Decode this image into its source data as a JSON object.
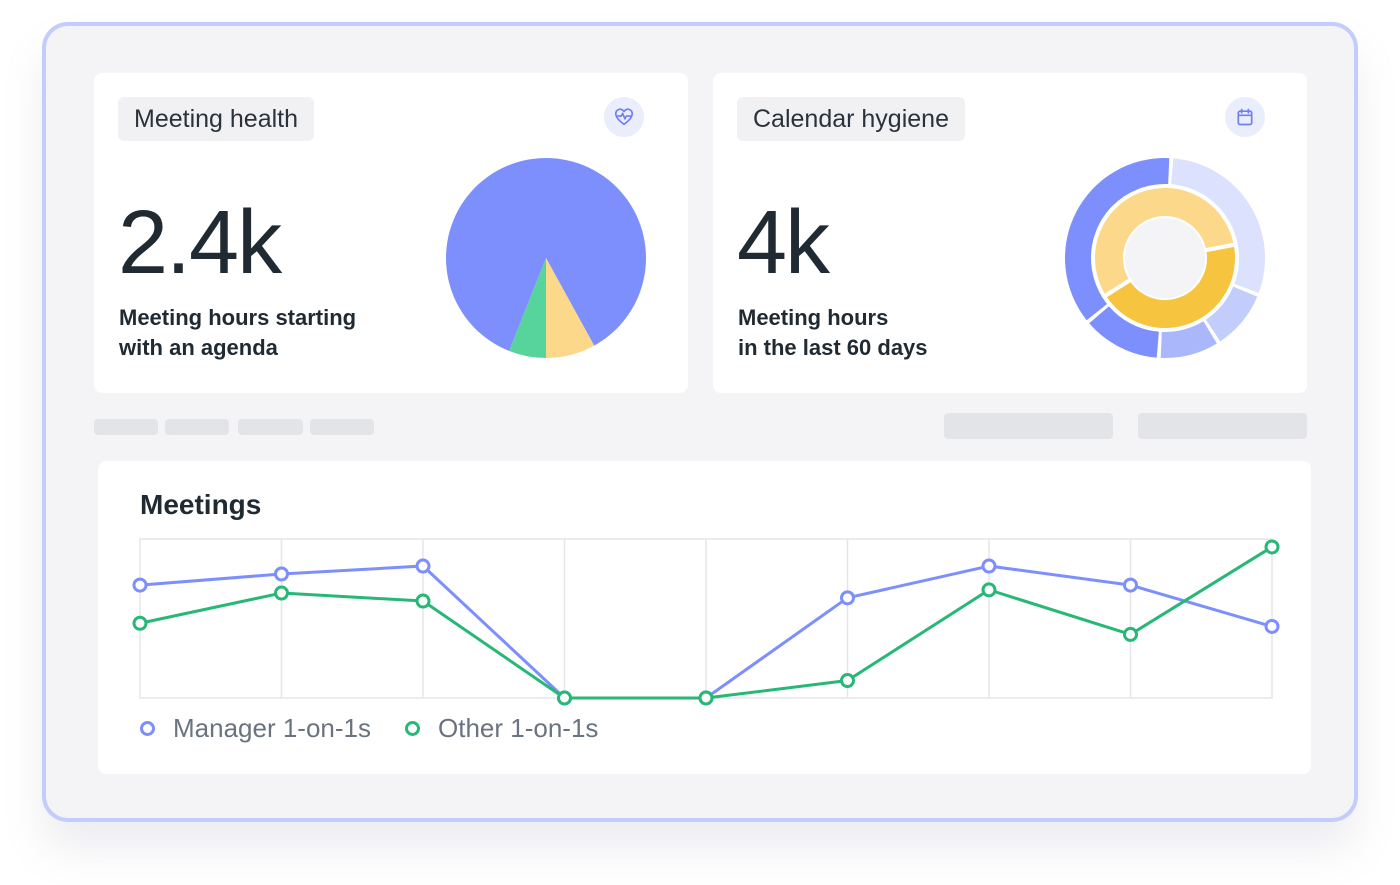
{
  "cards": {
    "meeting_health": {
      "title": "Meeting health",
      "icon": "heart-pulse-icon",
      "value": "2.4k",
      "caption_line1": "Meeting hours starting",
      "caption_line2": "with an agenda",
      "pie": {
        "type": "pie",
        "slices": [
          {
            "value": 86,
            "color": "#7c8ffc"
          },
          {
            "value": 8,
            "color": "#fcd88a"
          },
          {
            "value": 6,
            "color": "#57d49b"
          }
        ]
      }
    },
    "calendar_hygiene": {
      "title": "Calendar hygiene",
      "icon": "calendar-icon",
      "value": "4k",
      "caption_line1": "Meeting hours",
      "caption_line2": "in the last 60 days",
      "donut": {
        "type": "donut",
        "outer": [
          {
            "value": 37,
            "color": "#7c8ffc"
          },
          {
            "value": 30,
            "color": "#dce2fd"
          },
          {
            "value": 10,
            "color": "#c3cdfb"
          },
          {
            "value": 10,
            "color": "#aab8fb"
          },
          {
            "value": 13,
            "color": "#7c8ffc"
          }
        ],
        "inner": [
          {
            "value": 56,
            "color": "#fcd88a"
          },
          {
            "value": 44,
            "color": "#f7c440"
          }
        ]
      }
    }
  },
  "meetings_chart": {
    "title": "Meetings",
    "legend": [
      {
        "label": "Manager 1-on-1s",
        "color": "#7c8ffc"
      },
      {
        "label": "Other 1-on-1s",
        "color": "#27b876"
      }
    ]
  },
  "chart_data": {
    "type": "line",
    "title": "Meetings",
    "x": [
      1,
      2,
      3,
      4,
      5,
      6,
      7,
      8,
      9
    ],
    "ylim": [
      0,
      100
    ],
    "grid": true,
    "legend_position": "bottom-left",
    "series": [
      {
        "name": "Manager 1-on-1s",
        "color": "#7c8ffc",
        "values": [
          71,
          78,
          83,
          0,
          0,
          63,
          83,
          71,
          45
        ]
      },
      {
        "name": "Other 1-on-1s",
        "color": "#27b876",
        "values": [
          47,
          66,
          61,
          0,
          0,
          11,
          68,
          40,
          95
        ]
      }
    ]
  }
}
